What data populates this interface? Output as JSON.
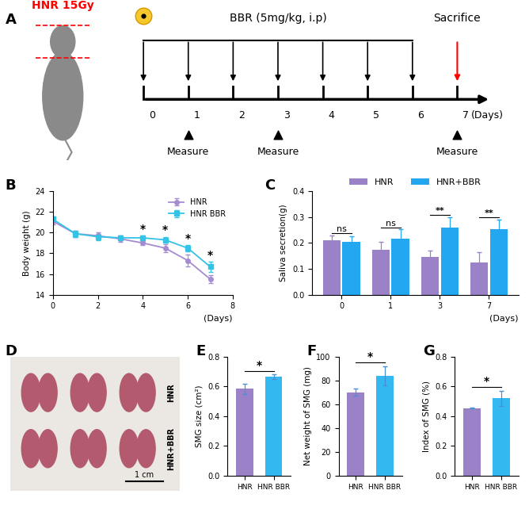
{
  "panel_labels": [
    "A",
    "B",
    "C",
    "D",
    "E",
    "F",
    "G"
  ],
  "timeline": {
    "irradiation": "HNR 15Gy",
    "treatment": "BBR (5mg/kg, i.p)",
    "endpoint": "Sacrifice",
    "days": [
      0,
      1,
      2,
      3,
      4,
      5,
      6,
      7
    ],
    "treatment_days": [
      0,
      1,
      2,
      3,
      4,
      5,
      6
    ],
    "endpoint_day": 7,
    "measure_days": [
      1,
      3,
      7
    ],
    "measure_label": "Measure",
    "x_label": "(Days)"
  },
  "image": {
    "row_labels": [
      "HNR",
      "HNR+BBR"
    ],
    "scale_bar": "1 cm"
  },
  "chart_data": [
    {
      "type": "line",
      "y_label": "Body weight (g)",
      "x_label": "(Days)",
      "x": [
        0,
        1,
        2,
        3,
        4,
        5,
        6,
        7
      ],
      "xlim": [
        0,
        8
      ],
      "xticks": [
        0,
        2,
        4,
        6,
        8
      ],
      "ylim": [
        14,
        24
      ],
      "yticks": [
        14,
        16,
        18,
        20,
        22,
        24
      ],
      "legend": "upper right",
      "series": [
        {
          "name": "HNR",
          "color": "#a58bd0",
          "marker": "o",
          "values": [
            21.1,
            19.9,
            19.7,
            19.4,
            19.0,
            18.5,
            17.3,
            15.5
          ],
          "errors": [
            0.3,
            0.3,
            0.3,
            0.3,
            0.2,
            0.4,
            0.6,
            0.4
          ]
        },
        {
          "name": "HNR BBR",
          "color": "#33c3e6",
          "marker": "s",
          "values": [
            21.3,
            19.9,
            19.6,
            19.5,
            19.5,
            19.3,
            18.5,
            16.7
          ],
          "errors": [
            0.3,
            0.3,
            0.3,
            0.2,
            0.2,
            0.3,
            0.3,
            0.5
          ]
        }
      ],
      "annotations": [
        {
          "x": 4,
          "text": "*"
        },
        {
          "x": 5,
          "text": "*"
        },
        {
          "x": 6,
          "text": "*"
        },
        {
          "x": 7,
          "text": "*"
        }
      ]
    },
    {
      "type": "bar",
      "y_label": "Saliva secretion(g)",
      "x_label": "(Days)",
      "categories": [
        "0",
        "1",
        "3",
        "7"
      ],
      "ylim": [
        0,
        0.4
      ],
      "yticks": [
        {
          "value": 0,
          "label": "0.0"
        },
        0.1,
        0.2,
        0.3,
        0.4
      ],
      "legend": "upper center",
      "series": [
        {
          "name": "HNR",
          "color": "#9b82c8",
          "values": [
            0.21,
            0.175,
            0.145,
            0.125
          ],
          "errors": [
            0.02,
            0.03,
            0.025,
            0.04
          ]
        },
        {
          "name": "HNR+BBR",
          "color": "#22a7f0",
          "values": [
            0.205,
            0.218,
            0.26,
            0.255
          ],
          "errors": [
            0.02,
            0.035,
            0.04,
            0.035
          ]
        }
      ],
      "annotations": [
        "ns",
        "ns",
        "**",
        "**"
      ]
    },
    {
      "type": "bar",
      "y_label": "SMG size (cm²)",
      "categories": [
        "HNR",
        "HNR BBR"
      ],
      "values": [
        0.585,
        0.665
      ],
      "errors": [
        0.035,
        0.015
      ],
      "colors": [
        "#9b82c8",
        "#33b8f0"
      ],
      "ylim": [
        0,
        0.8
      ],
      "yticks": [
        {
          "value": 0,
          "label": "0.0"
        },
        0.2,
        0.4,
        0.6,
        0.8
      ],
      "annotation": "*"
    },
    {
      "type": "bar",
      "y_label": "Net weight of SMG (mg)",
      "categories": [
        "HNR",
        "HNR BBR"
      ],
      "values": [
        70,
        84
      ],
      "errors": [
        3,
        8
      ],
      "colors": [
        "#9b82c8",
        "#33b8f0"
      ],
      "ylim": [
        0,
        100
      ],
      "yticks": [
        0,
        20,
        40,
        60,
        80,
        100
      ],
      "annotation": "*"
    },
    {
      "type": "bar",
      "y_label": "Index of SMG (%)",
      "categories": [
        "HNR",
        "HNR BBR"
      ],
      "values": [
        0.455,
        0.52
      ],
      "errors": [
        0.005,
        0.05
      ],
      "colors": [
        "#9b82c8",
        "#33b8f0"
      ],
      "ylim": [
        0,
        0.8
      ],
      "yticks": [
        {
          "value": 0,
          "label": "0.0"
        },
        0.2,
        0.4,
        0.6,
        0.8
      ],
      "annotation": "*"
    }
  ]
}
